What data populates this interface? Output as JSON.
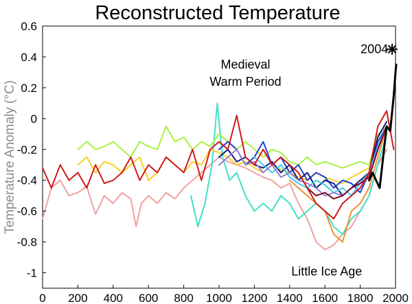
{
  "chart_data": {
    "type": "line",
    "title": "Reconstructed Temperature",
    "xlabel": "",
    "ylabel": "Temperature Anomaly (°C)",
    "xlim": [
      0,
      2000
    ],
    "ylim": [
      -1.1,
      0.6
    ],
    "x_ticks": [
      0,
      200,
      400,
      600,
      800,
      1000,
      1200,
      1400,
      1600,
      1800,
      2000
    ],
    "y_ticks": [
      0.6,
      0.4,
      0.2,
      0,
      -0.2,
      -0.4,
      -0.6,
      -0.8,
      -1
    ],
    "x_tick_labels": [
      "0",
      "200",
      "400",
      "600",
      "800",
      "1000",
      "1200",
      "1400",
      "1600",
      "1800",
      "2000"
    ],
    "y_tick_labels": [
      "0.6",
      "0.4",
      "0.2",
      "0",
      "-0.2",
      "-0.4",
      "-0.6",
      "-0.8",
      "-1"
    ],
    "annotations": [
      {
        "text": "Medieval",
        "x": 1150,
        "y": 0.35
      },
      {
        "text": "Warm Period",
        "x": 1150,
        "y": 0.24
      },
      {
        "text": "Little Ice Age",
        "x": 1610,
        "y": -0.99
      },
      {
        "text": "2004",
        "x": 1880,
        "y": 0.45
      }
    ],
    "marker": {
      "label": "2004 star",
      "x": 2004,
      "y": 0.45
    },
    "series": [
      {
        "name": "pink-reconstruction",
        "color": "#f0a0a0",
        "x": [
          0,
          50,
          100,
          150,
          200,
          250,
          300,
          350,
          400,
          450,
          500,
          530,
          560,
          600,
          650,
          700,
          750,
          800,
          850,
          900,
          950,
          1000,
          1050,
          1100,
          1150,
          1200,
          1250,
          1300,
          1350,
          1400,
          1450,
          1500,
          1550,
          1600,
          1650,
          1700,
          1750,
          1800,
          1850,
          1900,
          1950
        ],
        "y": [
          -0.65,
          -0.45,
          -0.4,
          -0.5,
          -0.48,
          -0.44,
          -0.62,
          -0.5,
          -0.55,
          -0.48,
          -0.52,
          -0.7,
          -0.55,
          -0.5,
          -0.55,
          -0.48,
          -0.52,
          -0.45,
          -0.4,
          -0.35,
          -0.3,
          -0.25,
          -0.28,
          -0.3,
          -0.32,
          -0.35,
          -0.38,
          -0.4,
          -0.45,
          -0.42,
          -0.55,
          -0.65,
          -0.8,
          -0.85,
          -0.82,
          -0.75,
          -0.7,
          -0.6,
          -0.5,
          -0.3,
          -0.2
        ]
      },
      {
        "name": "teal-reconstruction",
        "color": "#40e0c8",
        "x": [
          840,
          880,
          920,
          960,
          990,
          1020,
          1060,
          1100,
          1150,
          1200,
          1250,
          1300,
          1350,
          1400,
          1450,
          1500,
          1550,
          1600,
          1650,
          1700,
          1750,
          1800,
          1850,
          1900,
          1950
        ],
        "y": [
          -0.5,
          -0.7,
          -0.55,
          -0.3,
          0.1,
          -0.25,
          -0.4,
          -0.35,
          -0.5,
          -0.6,
          -0.55,
          -0.6,
          -0.5,
          -0.55,
          -0.65,
          -0.6,
          -0.55,
          -0.6,
          -0.7,
          -0.75,
          -0.65,
          -0.6,
          -0.5,
          -0.3,
          -0.1
        ]
      },
      {
        "name": "green-reconstruction",
        "color": "#a8f040",
        "x": [
          200,
          250,
          300,
          350,
          400,
          450,
          500,
          550,
          600,
          650,
          700,
          750,
          800,
          850,
          900,
          950,
          1000,
          1050,
          1100,
          1150,
          1200,
          1250,
          1300,
          1350,
          1400,
          1450,
          1500,
          1550,
          1600,
          1650,
          1700,
          1750,
          1800,
          1850,
          1900,
          1950
        ],
        "y": [
          -0.2,
          -0.15,
          -0.2,
          -0.18,
          -0.15,
          -0.2,
          -0.25,
          -0.15,
          -0.18,
          -0.2,
          -0.05,
          -0.15,
          -0.12,
          -0.2,
          -0.15,
          -0.18,
          -0.1,
          -0.15,
          -0.2,
          -0.15,
          -0.2,
          -0.25,
          -0.2,
          -0.22,
          -0.28,
          -0.3,
          -0.25,
          -0.3,
          -0.28,
          -0.3,
          -0.32,
          -0.3,
          -0.28,
          -0.3,
          -0.1,
          -0.05
        ]
      },
      {
        "name": "yellow-reconstruction",
        "color": "#f8d020",
        "x": [
          200,
          250,
          300,
          350,
          400,
          450,
          500,
          550,
          600,
          650,
          700,
          750,
          800,
          850,
          900,
          950,
          1000,
          1050,
          1100,
          1150,
          1200,
          1250,
          1300,
          1350,
          1400,
          1450,
          1500,
          1550,
          1600,
          1650,
          1700,
          1750,
          1800,
          1850,
          1900,
          1950
        ],
        "y": [
          -0.3,
          -0.25,
          -0.35,
          -0.28,
          -0.3,
          -0.35,
          -0.3,
          -0.25,
          -0.4,
          -0.35,
          -0.25,
          -0.3,
          -0.35,
          -0.28,
          -0.3,
          -0.2,
          -0.22,
          -0.25,
          -0.3,
          -0.28,
          -0.32,
          -0.35,
          -0.3,
          -0.33,
          -0.35,
          -0.38,
          -0.4,
          -0.35,
          -0.38,
          -0.4,
          -0.42,
          -0.38,
          -0.35,
          -0.32,
          -0.15,
          -0.05
        ]
      },
      {
        "name": "orange-reconstruction",
        "color": "#f09030",
        "x": [
          1400,
          1450,
          1500,
          1550,
          1600,
          1650,
          1700,
          1750,
          1800,
          1850,
          1900,
          1950
        ],
        "y": [
          -0.4,
          -0.45,
          -0.5,
          -0.55,
          -0.6,
          -0.75,
          -0.8,
          -0.6,
          -0.55,
          -0.45,
          -0.25,
          -0.05
        ]
      },
      {
        "name": "blue-reconstruction",
        "color": "#2040d0",
        "x": [
          1000,
          1050,
          1100,
          1150,
          1200,
          1250,
          1300,
          1350,
          1400,
          1450,
          1500,
          1550,
          1600,
          1650,
          1700,
          1750,
          1800,
          1850,
          1900,
          1950
        ],
        "y": [
          -0.2,
          -0.15,
          -0.2,
          -0.3,
          -0.25,
          -0.15,
          -0.3,
          -0.25,
          -0.35,
          -0.3,
          -0.4,
          -0.35,
          -0.38,
          -0.45,
          -0.4,
          -0.42,
          -0.48,
          -0.35,
          -0.15,
          -0.05
        ]
      },
      {
        "name": "navy-reconstruction",
        "color": "#101880",
        "x": [
          1000,
          1050,
          1100,
          1150,
          1200,
          1250,
          1300,
          1350,
          1400,
          1450,
          1500,
          1550,
          1600,
          1650,
          1700,
          1750,
          1800,
          1850,
          1900,
          1950
        ],
        "y": [
          -0.25,
          -0.2,
          -0.28,
          -0.25,
          -0.3,
          -0.32,
          -0.28,
          -0.35,
          -0.3,
          -0.4,
          -0.35,
          -0.45,
          -0.4,
          -0.42,
          -0.5,
          -0.45,
          -0.4,
          -0.35,
          -0.12,
          -0.02
        ]
      },
      {
        "name": "cyan-reconstruction",
        "color": "#40c8f0",
        "x": [
          1200,
          1250,
          1300,
          1350,
          1400,
          1450,
          1500,
          1550,
          1600,
          1650,
          1700,
          1750,
          1800,
          1850,
          1900,
          1950
        ],
        "y": [
          -0.25,
          -0.3,
          -0.35,
          -0.3,
          -0.38,
          -0.42,
          -0.45,
          -0.4,
          -0.43,
          -0.48,
          -0.45,
          -0.5,
          -0.42,
          -0.35,
          -0.18,
          -0.05
        ]
      },
      {
        "name": "purple-reconstruction",
        "color": "#9080d0",
        "x": [
          1000,
          1050,
          1100,
          1150,
          1200,
          1250,
          1300,
          1350,
          1400,
          1450,
          1500,
          1550,
          1600,
          1650,
          1700,
          1750,
          1800,
          1850,
          1900,
          1950
        ],
        "y": [
          -0.3,
          -0.25,
          -0.2,
          -0.3,
          -0.28,
          -0.35,
          -0.3,
          -0.38,
          -0.35,
          -0.4,
          -0.42,
          -0.45,
          -0.5,
          -0.48,
          -0.5,
          -0.45,
          -0.42,
          -0.38,
          -0.2,
          -0.05
        ]
      },
      {
        "name": "darkred-reconstruction",
        "color": "#800020",
        "x": [
          1500,
          1550,
          1600,
          1650,
          1700,
          1750,
          1800,
          1850,
          1900,
          1950
        ],
        "y": [
          -0.45,
          -0.5,
          -0.48,
          -0.52,
          -0.5,
          -0.45,
          -0.42,
          -0.38,
          -0.2,
          -0.05
        ]
      },
      {
        "name": "red-reconstruction",
        "color": "#d01818",
        "x": [
          0,
          50,
          100,
          150,
          200,
          250,
          300,
          350,
          400,
          450,
          500,
          550,
          600,
          650,
          700,
          750,
          800,
          850,
          900,
          950,
          1000,
          1050,
          1100,
          1150,
          1200,
          1250,
          1300,
          1350,
          1400,
          1450,
          1500,
          1550,
          1600,
          1650,
          1700,
          1750,
          1800,
          1850,
          1900,
          1950,
          1990
        ],
        "y": [
          -0.32,
          -0.45,
          -0.3,
          -0.4,
          -0.35,
          -0.45,
          -0.3,
          -0.42,
          -0.4,
          -0.35,
          -0.25,
          -0.4,
          -0.3,
          -0.35,
          -0.25,
          -0.3,
          -0.35,
          -0.2,
          -0.4,
          -0.2,
          -0.15,
          -0.2,
          0.02,
          -0.25,
          -0.3,
          -0.2,
          -0.3,
          -0.25,
          -0.3,
          -0.35,
          -0.45,
          -0.55,
          -0.6,
          -0.65,
          -0.55,
          -0.5,
          -0.45,
          -0.35,
          -0.05,
          0.05,
          -0.2
        ]
      },
      {
        "name": "instrumental-record",
        "color": "#000000",
        "x": [
          1850,
          1870,
          1890,
          1910,
          1930,
          1950,
          1970,
          1990,
          2000,
          2004
        ],
        "y": [
          -0.4,
          -0.35,
          -0.4,
          -0.45,
          -0.25,
          -0.05,
          -0.08,
          0.15,
          0.3,
          0.35
        ]
      }
    ]
  }
}
